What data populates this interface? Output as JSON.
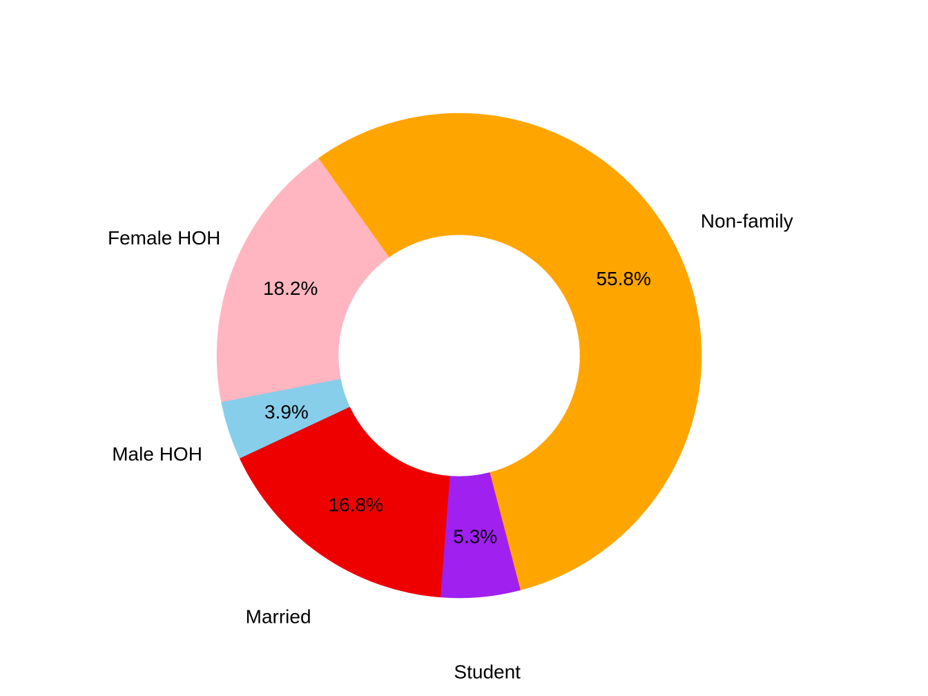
{
  "chart_data": {
    "type": "pie",
    "variant": "donut",
    "slices": [
      {
        "name": "Non-family",
        "value": 55.8,
        "label": "55.8%",
        "color": "#FFA500"
      },
      {
        "name": "Student",
        "value": 5.3,
        "label": "5.3%",
        "color": "#A020F0"
      },
      {
        "name": "Married",
        "value": 16.8,
        "label": "16.8%",
        "color": "#EE0000"
      },
      {
        "name": "Male HOH",
        "value": 3.9,
        "label": "3.9%",
        "color": "#87CEEB"
      },
      {
        "name": "Female HOH",
        "value": 18.2,
        "label": "18.2%",
        "color": "#FFB6C1"
      }
    ],
    "title": "",
    "legend": "none"
  }
}
